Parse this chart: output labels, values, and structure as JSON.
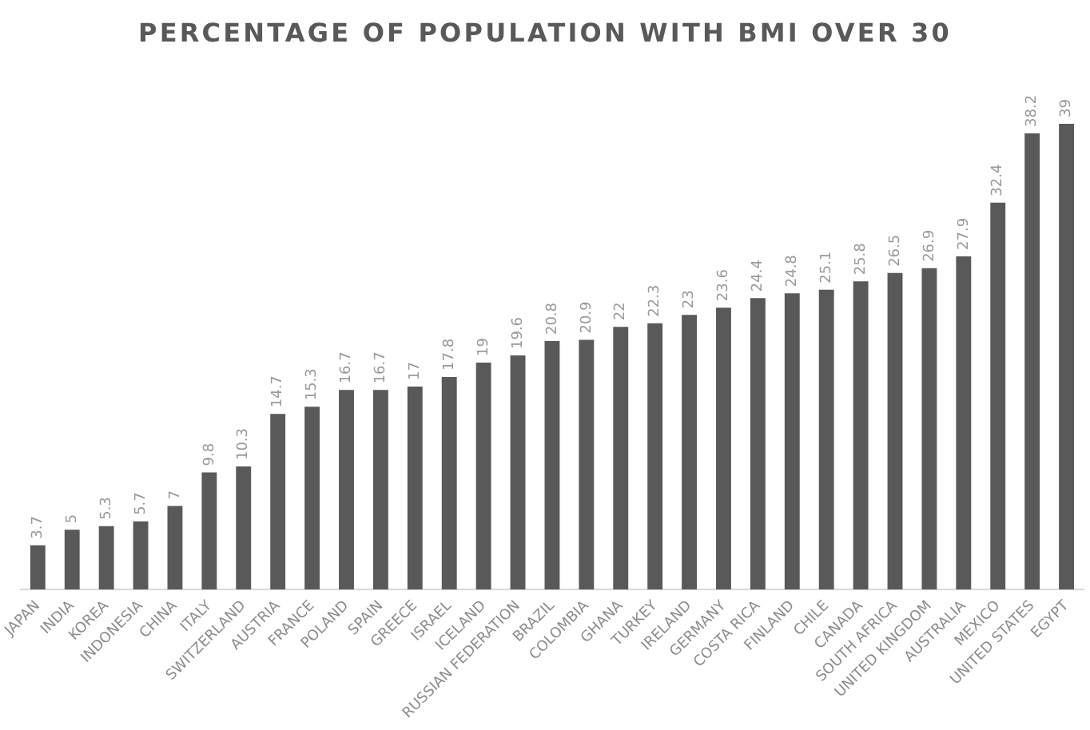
{
  "chart_data": {
    "type": "bar",
    "title": "PERCENTAGE OF POPULATION WITH BMI OVER 30",
    "categories": [
      "JAPAN",
      "INDIA",
      "KOREA",
      "INDONESIA",
      "CHINA",
      "ITALY",
      "SWITZERLAND",
      "AUSTRIA",
      "FRANCE",
      "POLAND",
      "SPAIN",
      "GREECE",
      "ISRAEL",
      "ICELAND",
      "RUSSIAN FEDERATION",
      "BRAZIL",
      "COLOMBIA",
      "GHANA",
      "TURKEY",
      "IRELAND",
      "GERMANY",
      "COSTA RICA",
      "FINLAND",
      "CHILE",
      "CANADA",
      "SOUTH AFRICA",
      "UNITED KINGDOM",
      "AUSTRALIA",
      "MEXICO",
      "UNITED STATES",
      "EGYPT"
    ],
    "values": [
      3.7,
      5,
      5.3,
      5.7,
      7,
      9.8,
      10.3,
      14.7,
      15.3,
      16.7,
      16.7,
      17,
      17.8,
      19,
      19.6,
      20.8,
      20.9,
      22,
      22.3,
      23,
      23.6,
      24.4,
      24.8,
      25.1,
      25.8,
      26.5,
      26.9,
      27.9,
      32.4,
      38.2,
      39
    ],
    "color": "#595959",
    "data_labels": true,
    "tick_labels": "x"
  }
}
